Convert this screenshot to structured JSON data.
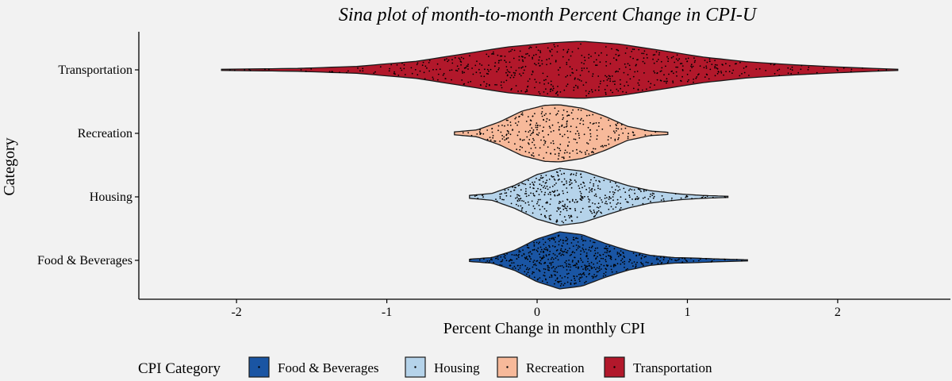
{
  "chart_data": {
    "type": "sina",
    "title": "Sina plot of month-to-month Percent Change in CPI-U",
    "xlabel": "Percent Change in monthly CPI",
    "ylabel": "Category",
    "xlim": [
      -2.65,
      2.75
    ],
    "x_ticks": [
      -2,
      -1,
      0,
      1,
      2
    ],
    "x_tick_labels": [
      "-2",
      "-1",
      "0",
      "1",
      "2"
    ],
    "grid": false,
    "legend": {
      "title": "CPI Category",
      "placement": "bottom"
    },
    "categories": [
      "Transportation",
      "Recreation",
      "Housing",
      "Food & Beverages"
    ],
    "series": [
      {
        "name": "Transportation",
        "color": "#b2182b",
        "min": -2.1,
        "max": 2.4,
        "points": 600,
        "density": [
          [
            -2.1,
            0.02
          ],
          [
            -1.6,
            0.05
          ],
          [
            -1.2,
            0.12
          ],
          [
            -0.8,
            0.3
          ],
          [
            -0.5,
            0.55
          ],
          [
            -0.2,
            0.8
          ],
          [
            0.1,
            0.95
          ],
          [
            0.3,
            1.0
          ],
          [
            0.55,
            0.9
          ],
          [
            0.8,
            0.7
          ],
          [
            1.1,
            0.45
          ],
          [
            1.4,
            0.28
          ],
          [
            1.7,
            0.18
          ],
          [
            2.0,
            0.1
          ],
          [
            2.4,
            0.02
          ]
        ]
      },
      {
        "name": "Recreation",
        "color": "#f7b99a",
        "min": -0.55,
        "max": 0.87,
        "points": 300,
        "density": [
          [
            -0.55,
            0.05
          ],
          [
            -0.4,
            0.12
          ],
          [
            -0.25,
            0.4
          ],
          [
            -0.1,
            0.78
          ],
          [
            0.05,
            0.98
          ],
          [
            0.15,
            1.0
          ],
          [
            0.3,
            0.88
          ],
          [
            0.45,
            0.6
          ],
          [
            0.6,
            0.25
          ],
          [
            0.75,
            0.08
          ],
          [
            0.87,
            0.04
          ]
        ]
      },
      {
        "name": "Housing",
        "color": "#b5d3ea",
        "min": -0.45,
        "max": 1.27,
        "points": 420,
        "density": [
          [
            -0.45,
            0.05
          ],
          [
            -0.3,
            0.12
          ],
          [
            -0.15,
            0.4
          ],
          [
            0.0,
            0.78
          ],
          [
            0.15,
            1.0
          ],
          [
            0.3,
            0.9
          ],
          [
            0.45,
            0.65
          ],
          [
            0.6,
            0.4
          ],
          [
            0.75,
            0.22
          ],
          [
            0.95,
            0.1
          ],
          [
            1.1,
            0.05
          ],
          [
            1.27,
            0.02
          ]
        ]
      },
      {
        "name": "Food & Beverages",
        "color": "#1a55a3",
        "min": -0.45,
        "max": 1.4,
        "points": 560,
        "density": [
          [
            -0.45,
            0.04
          ],
          [
            -0.3,
            0.1
          ],
          [
            -0.15,
            0.35
          ],
          [
            0.0,
            0.75
          ],
          [
            0.15,
            1.0
          ],
          [
            0.3,
            0.9
          ],
          [
            0.45,
            0.6
          ],
          [
            0.6,
            0.35
          ],
          [
            0.75,
            0.18
          ],
          [
            0.9,
            0.1
          ],
          [
            1.05,
            0.08
          ],
          [
            1.2,
            0.05
          ],
          [
            1.4,
            0.02
          ]
        ]
      }
    ]
  },
  "legend_items": [
    "Food & Beverages",
    "Housing",
    "Recreation",
    "Transportation"
  ]
}
